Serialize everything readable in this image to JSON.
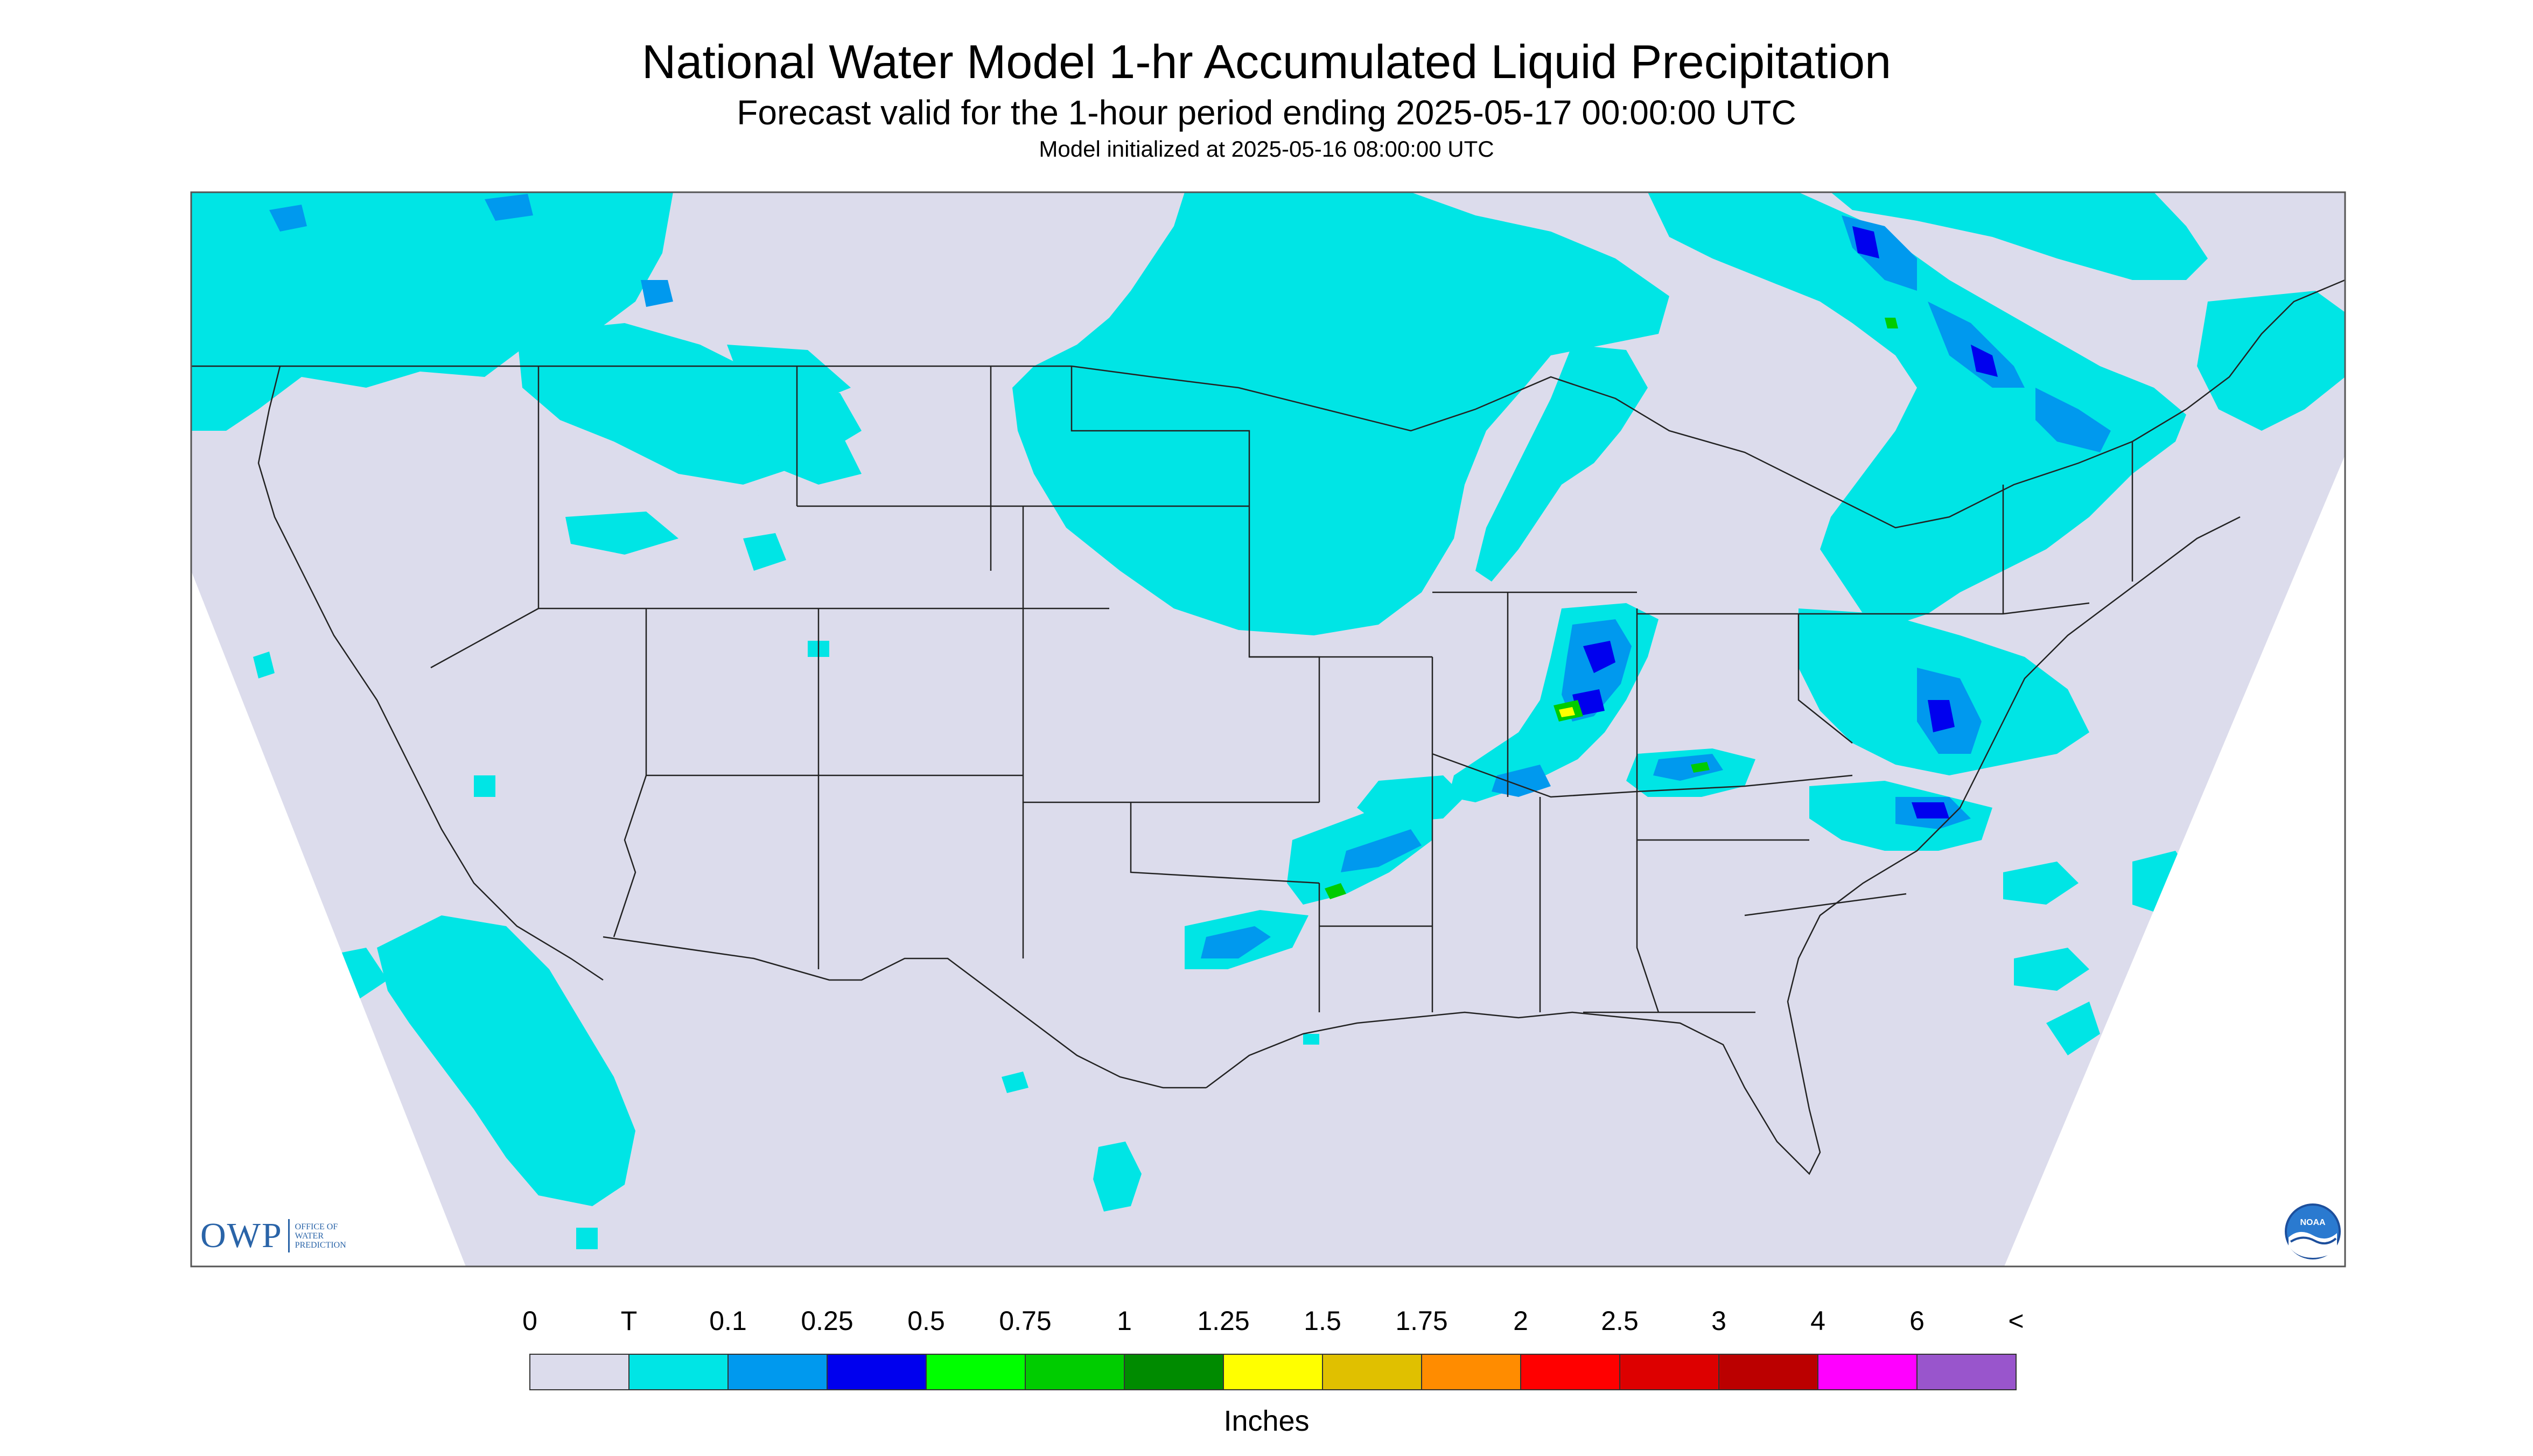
{
  "title": "National Water Model 1-hr Accumulated Liquid Precipitation",
  "subtitle": "Forecast valid for the 1-hour period ending 2025-05-17 00:00:00 UTC",
  "init_text": "Model initialized at 2025-05-16 08:00:00 UTC",
  "logo_owp": {
    "letters": "OWP",
    "line1": "Office of",
    "line2": "Water",
    "line3": "Prediction"
  },
  "logo_noaa": {
    "text": "NOAA"
  },
  "legend": {
    "units": "Inches",
    "labels": [
      "0",
      "T",
      "0.1",
      "0.25",
      "0.5",
      "0.75",
      "1",
      "1.25",
      "1.5",
      "1.75",
      "2",
      "2.5",
      "3",
      "4",
      "6",
      "<"
    ],
    "colors": [
      "#dcdcec",
      "#00e5e5",
      "#0099ee",
      "#0000ee",
      "#00ff00",
      "#00cc00",
      "#008b00",
      "#ffff00",
      "#e0c000",
      "#ff8c00",
      "#ff0000",
      "#dd0000",
      "#bb0000",
      "#ff00ff",
      "#9955cc"
    ]
  },
  "colors": {
    "map_background": "#dcdcec",
    "trace": "#00e5e5",
    "light": "#0099ee",
    "moderate": "#0000ee",
    "heavy": "#00cc00",
    "very_heavy": "#ffff00",
    "border": "#222222",
    "outside": "#ffffff"
  }
}
